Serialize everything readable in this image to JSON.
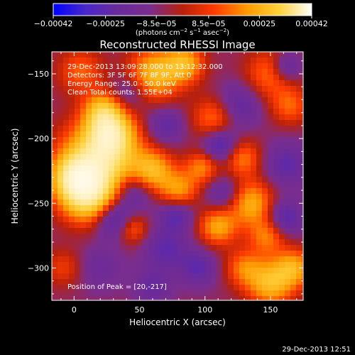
{
  "chart_data": {
    "type": "heatmap",
    "title": "Reconstructed RHESSI Image",
    "xlabel": "Heliocentric X (arcsec)",
    "ylabel": "Heliocentric Y (arcsec)",
    "xlim": [
      -17,
      175
    ],
    "ylim": [
      -325,
      -133
    ],
    "x_ticks": [
      {
        "value": 0,
        "label": "0"
      },
      {
        "value": 50,
        "label": "50"
      },
      {
        "value": 100,
        "label": "100"
      },
      {
        "value": 150,
        "label": "150"
      }
    ],
    "y_ticks": [
      {
        "value": -150,
        "label": "−150"
      },
      {
        "value": -200,
        "label": "−200"
      },
      {
        "value": -250,
        "label": "−250"
      },
      {
        "value": -300,
        "label": "−300"
      }
    ],
    "colorbar": {
      "range": [
        -0.00042,
        0.00042
      ],
      "ticks": [
        {
          "value": -0.00042,
          "label": "−0.00042"
        },
        {
          "value": -0.00025,
          "label": "−0.00025"
        },
        {
          "value": -8.5e-05,
          "label": "−8.5e−05"
        },
        {
          "value": 8.5e-05,
          "label": "8.5e−05"
        },
        {
          "value": 0.00025,
          "label": "0.00025"
        },
        {
          "value": 0.00042,
          "label": "0.00042"
        }
      ],
      "unit_parts": [
        "(photons cm",
        "−2",
        " s",
        "−1",
        " asec",
        "−2",
        ")"
      ],
      "colors": [
        "#0000ff",
        "#4a28c8",
        "#6a2a9a",
        "#7a2d8e",
        "#b8200c",
        "#ff3c00",
        "#ff9a00",
        "#ffd23c",
        "#ffffff"
      ]
    },
    "annotations": [
      "29-Dec-2013 13:09:28.000 to 13:12:32.000",
      "Detectors: 3F 5F 6F 7F 8F 9F, Att 0",
      "Energy Range: 25.0 - 50.0 keV",
      "Clean    Total counts: 1.55E+04"
    ],
    "peak_label": "Position of Peak = [20,-217]",
    "blobs": [
      {
        "x": 20,
        "y": -217,
        "r": 20,
        "v": 1.0
      },
      {
        "x": 10,
        "y": -245,
        "r": 14,
        "v": 0.8
      },
      {
        "x": 28,
        "y": -195,
        "r": 12,
        "v": 0.75
      },
      {
        "x": 0,
        "y": -230,
        "r": 12,
        "v": 0.7
      },
      {
        "x": 22,
        "y": -178,
        "r": 10,
        "v": 0.55
      },
      {
        "x": 62,
        "y": -150,
        "r": 14,
        "v": 0.65
      },
      {
        "x": 85,
        "y": -142,
        "r": 10,
        "v": 0.55
      },
      {
        "x": 5,
        "y": -148,
        "r": 12,
        "v": 0.35
      },
      {
        "x": 150,
        "y": -150,
        "r": 13,
        "v": 0.4
      },
      {
        "x": 165,
        "y": -175,
        "r": 10,
        "v": 0.35
      },
      {
        "x": 108,
        "y": -185,
        "r": 12,
        "v": 0.45
      },
      {
        "x": 128,
        "y": -215,
        "r": 10,
        "v": 0.45
      },
      {
        "x": 60,
        "y": -225,
        "r": 11,
        "v": 0.6
      },
      {
        "x": 80,
        "y": -240,
        "r": 10,
        "v": 0.5
      },
      {
        "x": 98,
        "y": -222,
        "r": 9,
        "v": 0.45
      },
      {
        "x": 135,
        "y": -250,
        "r": 12,
        "v": 0.6
      },
      {
        "x": 110,
        "y": -268,
        "r": 10,
        "v": 0.55
      },
      {
        "x": 148,
        "y": -275,
        "r": 10,
        "v": 0.45
      },
      {
        "x": 45,
        "y": -270,
        "r": 8,
        "v": 0.35
      },
      {
        "x": 150,
        "y": -312,
        "r": 12,
        "v": 0.65
      },
      {
        "x": 168,
        "y": -300,
        "r": 10,
        "v": 0.55
      },
      {
        "x": 130,
        "y": -300,
        "r": 10,
        "v": 0.4
      },
      {
        "x": -8,
        "y": -300,
        "r": 10,
        "v": 0.25
      },
      {
        "x": 42,
        "y": -165,
        "r": 10,
        "v": -0.25
      },
      {
        "x": 125,
        "y": -175,
        "r": 12,
        "v": -0.35
      },
      {
        "x": 112,
        "y": -205,
        "r": 10,
        "v": -0.5
      },
      {
        "x": 162,
        "y": -145,
        "r": 8,
        "v": -0.4
      },
      {
        "x": 70,
        "y": -190,
        "r": 10,
        "v": -0.3
      },
      {
        "x": 162,
        "y": -220,
        "r": 12,
        "v": -0.3
      },
      {
        "x": 45,
        "y": -240,
        "r": 11,
        "v": -0.4
      },
      {
        "x": 115,
        "y": -243,
        "r": 10,
        "v": -0.3
      },
      {
        "x": 78,
        "y": -258,
        "r": 9,
        "v": -0.35
      },
      {
        "x": 30,
        "y": -262,
        "r": 10,
        "v": -0.45
      },
      {
        "x": 160,
        "y": -262,
        "r": 10,
        "v": -0.4
      },
      {
        "x": 70,
        "y": -285,
        "r": 12,
        "v": -0.3
      },
      {
        "x": 95,
        "y": -300,
        "r": 10,
        "v": -0.3
      },
      {
        "x": 20,
        "y": -300,
        "r": 12,
        "v": -0.2
      },
      {
        "x": 60,
        "y": -315,
        "r": 10,
        "v": -0.25
      }
    ]
  },
  "footer": {
    "timestamp": "29-Dec-2013 12:51"
  }
}
